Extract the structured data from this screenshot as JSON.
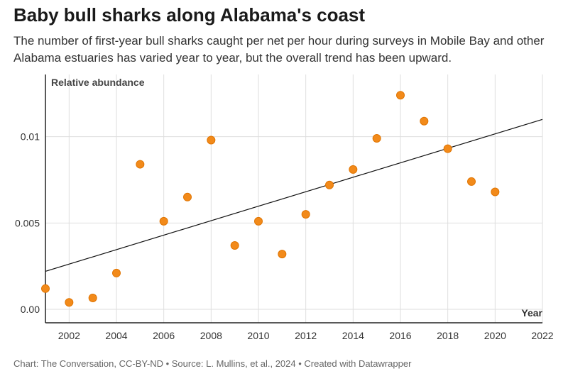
{
  "title": "Baby bull sharks along Alabama's coast",
  "subtitle": "The number of first-year bull sharks caught per net per hour during surveys in Mobile Bay and other Alabama estuaries has varied year to year, but the overall trend has been upward.",
  "footer": "Chart: The Conversation, CC-BY-ND • Source: L. Mullins, et al., 2024 • Created with Datawrapper",
  "chart_data": {
    "type": "scatter",
    "xlabel": "Year",
    "ylabel": "Relative abundance",
    "xlim": [
      2001,
      2022
    ],
    "ylim": [
      -0.00078,
      0.0136
    ],
    "xticks": [
      2002,
      2004,
      2006,
      2008,
      2010,
      2012,
      2014,
      2016,
      2018,
      2020,
      2022
    ],
    "yticks": [
      {
        "v": 0,
        "label": "0.00"
      },
      {
        "v": 0.005,
        "label": "0.005"
      },
      {
        "v": 0.01,
        "label": "0.01"
      }
    ],
    "grid": true,
    "point_color": "#f28a1a",
    "x": [
      2001,
      2002,
      2003,
      2004,
      2005,
      2006,
      2007,
      2008,
      2009,
      2010,
      2011,
      2012,
      2013,
      2014,
      2015,
      2016,
      2017,
      2018,
      2019,
      2020
    ],
    "y": [
      0.0012,
      0.0004,
      0.00066,
      0.0021,
      0.0084,
      0.0051,
      0.0065,
      0.0098,
      0.0037,
      0.0051,
      0.0032,
      0.0055,
      0.0072,
      0.0081,
      0.0099,
      0.0124,
      0.0109,
      0.0093,
      0.0074,
      0.0068
    ],
    "trendline": {
      "x": [
        2001,
        2022
      ],
      "y": [
        0.0022,
        0.011
      ]
    }
  }
}
